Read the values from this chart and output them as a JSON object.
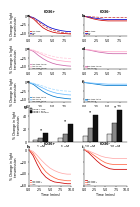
{
  "panels": {
    "a": {
      "title": "CD36+",
      "lines": [
        {
          "label": "ADP+MP",
          "color": "#cc0000",
          "y": [
            0,
            -8,
            -22,
            -35,
            -43,
            -48,
            -51,
            -52,
            -53,
            -54
          ],
          "ls": "-"
        },
        {
          "label": "ADP",
          "color": "#0000cc",
          "y": [
            0,
            -4,
            -13,
            -22,
            -31,
            -37,
            -41,
            -44,
            -46,
            -47
          ],
          "ls": "-"
        },
        {
          "label": "MP",
          "color": "#cc4444",
          "y": [
            0,
            -5,
            -16,
            -27,
            -36,
            -42,
            -46,
            -49,
            -51,
            -52
          ],
          "ls": "--"
        }
      ],
      "xlim": [
        0,
        9
      ],
      "ylim": [
        -60,
        5
      ]
    },
    "b": {
      "title": "CD36-",
      "lines": [
        {
          "label": "ADP+MP",
          "color": "#cc0000",
          "y": [
            0,
            -4,
            -8,
            -11,
            -13,
            -14,
            -14,
            -14,
            -14,
            -14
          ],
          "ls": "-"
        },
        {
          "label": "ADP",
          "color": "#0000cc",
          "y": [
            0,
            -2,
            -5,
            -7,
            -9,
            -10,
            -10,
            -10,
            -10,
            -10
          ],
          "ls": "-"
        },
        {
          "label": "MP",
          "color": "#cc4444",
          "y": [
            0,
            -1,
            -2,
            -3,
            -4,
            -4,
            -4,
            -4,
            -4,
            -4
          ],
          "ls": "--"
        }
      ],
      "xlim": [
        0,
        9
      ],
      "ylim": [
        -60,
        5
      ]
    },
    "c": {
      "title": "",
      "lines": [
        {
          "label": "ADP+MP+SSO",
          "color": "#cc66aa",
          "y": [
            0,
            -6,
            -18,
            -28,
            -36,
            -42,
            -46,
            -48,
            -50,
            -51
          ],
          "ls": "-"
        },
        {
          "label": "ADP+SSO",
          "color": "#ffaacc",
          "y": [
            0,
            -3,
            -10,
            -17,
            -24,
            -29,
            -33,
            -35,
            -37,
            -38
          ],
          "ls": "-"
        },
        {
          "label": "ADP+MP+SSO",
          "color": "#ffccdd",
          "y": [
            0,
            -2,
            -7,
            -12,
            -17,
            -21,
            -24,
            -26,
            -27,
            -28
          ],
          "ls": "--"
        }
      ],
      "xlim": [
        0,
        9
      ],
      "ylim": [
        -60,
        5
      ]
    },
    "d": {
      "title": "",
      "lines": [
        {
          "label": "ADP+MP+SSO",
          "color": "#cc66aa",
          "y": [
            0,
            -2,
            -5,
            -8,
            -10,
            -12,
            -13,
            -13,
            -13,
            -13
          ],
          "ls": "-"
        },
        {
          "label": "ADP+SSO",
          "color": "#ffaacc",
          "y": [
            0,
            -1,
            -3,
            -5,
            -6,
            -7,
            -7,
            -7,
            -7,
            -7
          ],
          "ls": "-"
        }
      ],
      "xlim": [
        0,
        9
      ],
      "ylim": [
        -60,
        5
      ]
    },
    "e": {
      "title": "",
      "lines": [
        {
          "label": "ADP+MP+FA6",
          "color": "#0077cc",
          "y": [
            0,
            -6,
            -17,
            -27,
            -35,
            -41,
            -45,
            -47,
            -49,
            -50
          ],
          "ls": "-"
        },
        {
          "label": "ADP+FA6",
          "color": "#66bbff",
          "y": [
            0,
            -3,
            -10,
            -17,
            -24,
            -29,
            -33,
            -35,
            -37,
            -38
          ],
          "ls": "-"
        },
        {
          "label": "ADP+MP+FA6",
          "color": "#aaddff",
          "y": [
            0,
            -2,
            -6,
            -11,
            -16,
            -20,
            -23,
            -25,
            -26,
            -27
          ],
          "ls": "--"
        }
      ],
      "xlim": [
        0,
        9
      ],
      "ylim": [
        -60,
        5
      ]
    },
    "f": {
      "title": "",
      "lines": [
        {
          "label": "ADP+MP+FA6",
          "color": "#0077cc",
          "y": [
            0,
            -2,
            -4,
            -6,
            -8,
            -9,
            -9,
            -9,
            -9,
            -9
          ],
          "ls": "-"
        },
        {
          "label": "ADP+FA6",
          "color": "#66bbff",
          "y": [
            0,
            -1,
            -2,
            -3,
            -4,
            -5,
            -5,
            -5,
            -5,
            -5
          ],
          "ls": "-"
        }
      ],
      "xlim": [
        0,
        9
      ],
      "ylim": [
        -60,
        5
      ]
    }
  },
  "bar_panel": {
    "groups": [
      "1 μM",
      "5 μM",
      "10 μM",
      "20 μM"
    ],
    "series": [
      {
        "label": "CD36+ ADP",
        "color": "#dddddd",
        "values": [
          4,
          7,
          10,
          13
        ]
      },
      {
        "label": "CD36+ SSO",
        "color": "#888888",
        "values": [
          7,
          13,
          22,
          30
        ]
      },
      {
        "label": "CD36+ control",
        "color": "#111111",
        "values": [
          14,
          28,
          42,
          50
        ]
      }
    ],
    "ylim": [
      0,
      55
    ],
    "ylabel": "% Change in light\ntransmission",
    "star_y": 52
  },
  "bottom_panels": {
    "h": {
      "title": "CD36+",
      "lines": [
        {
          "label": "ADP+MP",
          "color": "#cc0000",
          "y": [
            0,
            -10,
            -25,
            -38,
            -46,
            -51,
            -54,
            -55,
            -56,
            -57,
            -57
          ],
          "ls": "-"
        },
        {
          "label": "ADP+MP+",
          "color": "#ff6644",
          "y": [
            0,
            -6,
            -17,
            -28,
            -37,
            -43,
            -47,
            -50,
            -51,
            -52,
            -52
          ],
          "ls": "-"
        },
        {
          "label": "ADP",
          "color": "#ffaaaa",
          "y": [
            0,
            -3,
            -10,
            -18,
            -25,
            -31,
            -35,
            -38,
            -40,
            -41,
            -41
          ],
          "ls": "-"
        }
      ],
      "xlim": [
        0,
        10
      ],
      "ylim": [
        -60,
        5
      ]
    },
    "i": {
      "title": "CD36-",
      "lines": [
        {
          "label": "ADP+MP",
          "color": "#cc0000",
          "y": [
            0,
            -5,
            -12,
            -19,
            -25,
            -29,
            -32,
            -33,
            -33,
            -33,
            -33
          ],
          "ls": "-"
        },
        {
          "label": "ADP+MP+",
          "color": "#ff6644",
          "y": [
            0,
            -3,
            -8,
            -13,
            -18,
            -22,
            -24,
            -25,
            -25,
            -25,
            -25
          ],
          "ls": "-"
        },
        {
          "label": "ADP",
          "color": "#ffaaaa",
          "y": [
            0,
            -2,
            -5,
            -8,
            -11,
            -13,
            -14,
            -15,
            -15,
            -15,
            -15
          ],
          "ls": "-"
        }
      ],
      "xlim": [
        0,
        10
      ],
      "ylim": [
        -60,
        5
      ]
    }
  },
  "ylabel_line": "% Change in light\ntransmission",
  "xlabel_line": "Time (mins)",
  "bg_color": "#ffffff",
  "common_lw": 0.55,
  "common_fs": 2.3,
  "label_fs": 3.0
}
